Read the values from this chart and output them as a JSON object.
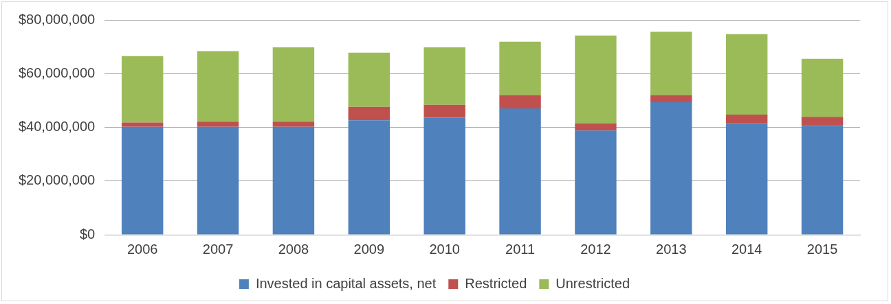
{
  "chart_data": {
    "type": "bar",
    "stacked": true,
    "categories": [
      "2006",
      "2007",
      "2008",
      "2009",
      "2010",
      "2011",
      "2012",
      "2013",
      "2014",
      "2015"
    ],
    "series": [
      {
        "name": "Invested in capital assets, net",
        "color": "#4f81bd",
        "values": [
          40200000,
          40200000,
          40200000,
          42600000,
          43600000,
          47000000,
          38800000,
          49300000,
          41600000,
          40500000
        ]
      },
      {
        "name": "Restricted",
        "color": "#c0504d",
        "values": [
          1600000,
          1900000,
          1900000,
          5000000,
          4800000,
          5000000,
          2700000,
          2700000,
          3100000,
          3400000
        ]
      },
      {
        "name": "Unrestricted",
        "color": "#9bbb59",
        "values": [
          24700000,
          26300000,
          27700000,
          20200000,
          21400000,
          19900000,
          32700000,
          23600000,
          30000000,
          21600000
        ]
      }
    ],
    "ylim": [
      0,
      80000000
    ],
    "yticks": [
      {
        "value": 0,
        "label": "$0"
      },
      {
        "value": 20000000,
        "label": "$20,000,000"
      },
      {
        "value": 40000000,
        "label": "$40,000,000"
      },
      {
        "value": 60000000,
        "label": "$60,000,000"
      },
      {
        "value": 80000000,
        "label": "$80,000,000"
      }
    ],
    "grid": "y",
    "legend": "bottom"
  }
}
